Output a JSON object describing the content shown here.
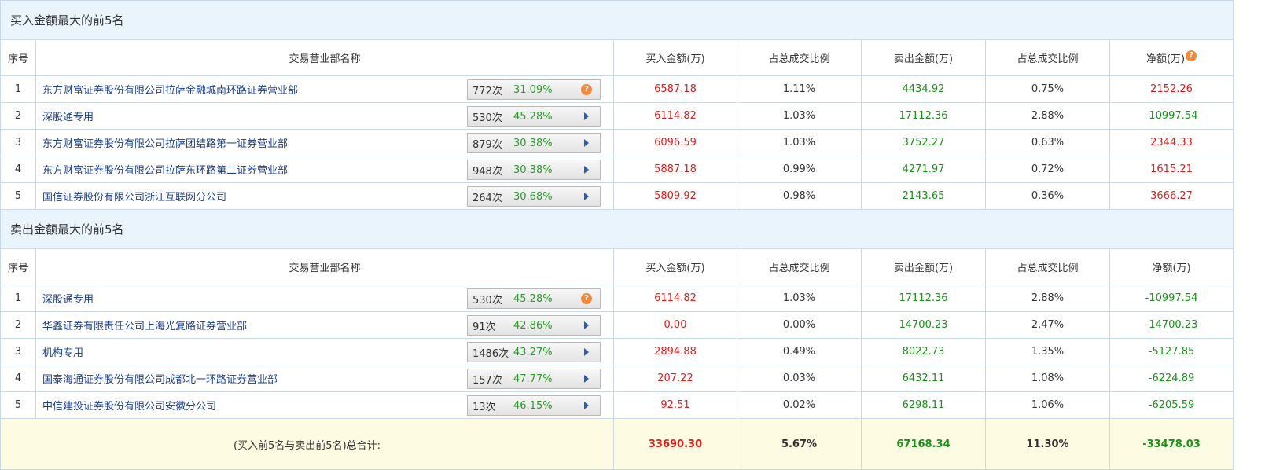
{
  "columns": {
    "idx": "序号",
    "name": "交易营业部名称",
    "buy": "买入金额(万)",
    "buy_ratio": "占总成交比例",
    "sell": "卖出金额(万)",
    "sell_ratio": "占总成交比例",
    "net": "净额(万)"
  },
  "buy_section": {
    "title": "买入金额最大的前5名",
    "rows": [
      {
        "idx": "1",
        "name": "东方财富证券股份有限公司拉萨金融城南环路证券营业部",
        "count": "772次",
        "pct": "31.09%",
        "icon": "question-icon",
        "buy": "6587.18",
        "buy_ratio": "1.11%",
        "sell": "4434.92",
        "sell_ratio": "0.75%",
        "net": "2152.26"
      },
      {
        "idx": "2",
        "name": "深股通专用",
        "count": "530次",
        "pct": "45.28%",
        "icon": "arrow-right-icon",
        "buy": "6114.82",
        "buy_ratio": "1.03%",
        "sell": "17112.36",
        "sell_ratio": "2.88%",
        "net": "-10997.54"
      },
      {
        "idx": "3",
        "name": "东方财富证券股份有限公司拉萨团结路第一证券营业部",
        "count": "879次",
        "pct": "30.38%",
        "icon": "arrow-right-icon",
        "buy": "6096.59",
        "buy_ratio": "1.03%",
        "sell": "3752.27",
        "sell_ratio": "0.63%",
        "net": "2344.33"
      },
      {
        "idx": "4",
        "name": "东方财富证券股份有限公司拉萨东环路第二证券营业部",
        "count": "948次",
        "pct": "30.38%",
        "icon": "arrow-right-icon",
        "buy": "5887.18",
        "buy_ratio": "0.99%",
        "sell": "4271.97",
        "sell_ratio": "0.72%",
        "net": "1615.21"
      },
      {
        "idx": "5",
        "name": "国信证券股份有限公司浙江互联网分公司",
        "count": "264次",
        "pct": "30.68%",
        "icon": "arrow-right-icon",
        "buy": "5809.92",
        "buy_ratio": "0.98%",
        "sell": "2143.65",
        "sell_ratio": "0.36%",
        "net": "3666.27"
      }
    ]
  },
  "sell_section": {
    "title": "卖出金额最大的前5名",
    "rows": [
      {
        "idx": "1",
        "name": "深股通专用",
        "count": "530次",
        "pct": "45.28%",
        "icon": "question-icon",
        "buy": "6114.82",
        "buy_ratio": "1.03%",
        "sell": "17112.36",
        "sell_ratio": "2.88%",
        "net": "-10997.54"
      },
      {
        "idx": "2",
        "name": "华鑫证券有限责任公司上海光复路证券营业部",
        "count": "91次",
        "pct": "42.86%",
        "icon": "arrow-right-icon",
        "buy": "0.00",
        "buy_ratio": "0.00%",
        "sell": "14700.23",
        "sell_ratio": "2.47%",
        "net": "-14700.23"
      },
      {
        "idx": "3",
        "name": "机构专用",
        "count": "1486次",
        "pct": "43.27%",
        "icon": "arrow-right-icon",
        "buy": "2894.88",
        "buy_ratio": "0.49%",
        "sell": "8022.73",
        "sell_ratio": "1.35%",
        "net": "-5127.85"
      },
      {
        "idx": "4",
        "name": "国泰海通证券股份有限公司成都北一环路证券营业部",
        "count": "157次",
        "pct": "47.77%",
        "icon": "arrow-right-icon",
        "buy": "207.22",
        "buy_ratio": "0.03%",
        "sell": "6432.11",
        "sell_ratio": "1.08%",
        "net": "-6224.89"
      },
      {
        "idx": "5",
        "name": "中信建投证券股份有限公司安徽分公司",
        "count": "13次",
        "pct": "46.15%",
        "icon": "arrow-right-icon",
        "buy": "92.51",
        "buy_ratio": "0.02%",
        "sell": "6298.11",
        "sell_ratio": "1.06%",
        "net": "-6205.59"
      }
    ]
  },
  "total": {
    "label": "(买入前5名与卖出前5名)总合计:",
    "buy": "33690.30",
    "buy_ratio": "5.67%",
    "sell": "67168.34",
    "sell_ratio": "11.30%",
    "net": "-33478.03"
  },
  "question_glyph": "?",
  "colors": {
    "positive": "#e21b1b",
    "negative": "#189218",
    "header_bg": "#eaf4fd",
    "total_bg": "#fdfbe1"
  }
}
